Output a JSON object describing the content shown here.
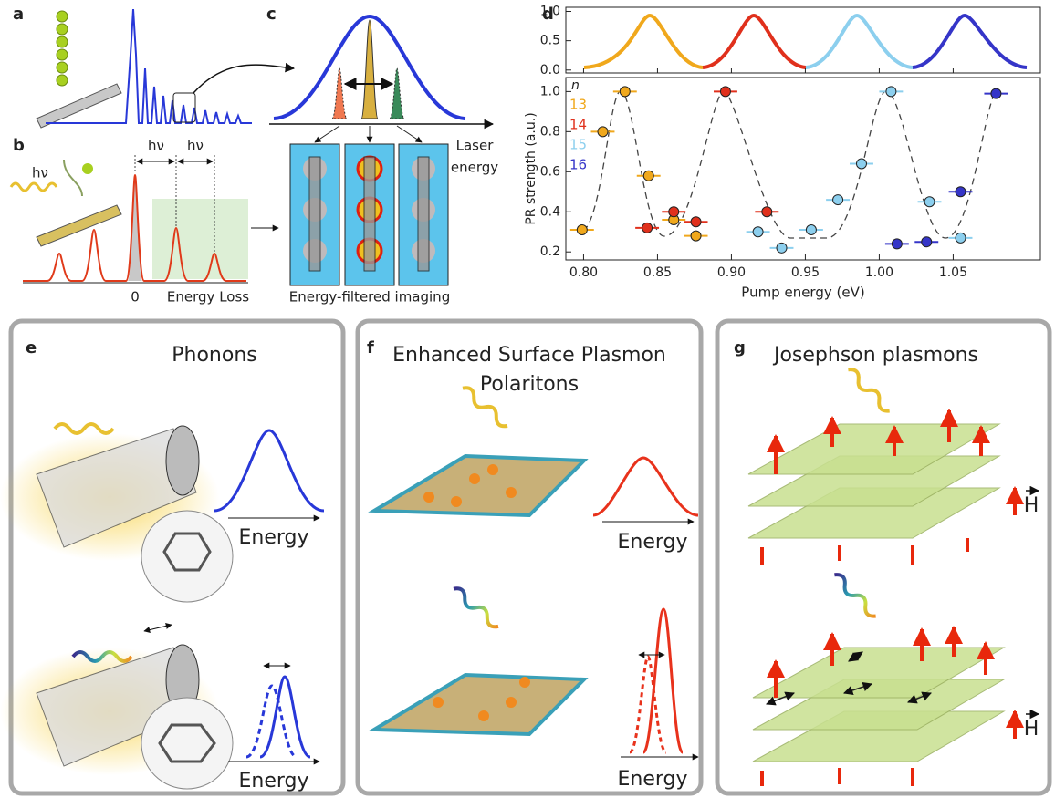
{
  "panel_labels": [
    "a",
    "b",
    "c",
    "d",
    "e",
    "f",
    "g"
  ],
  "panel_b": {
    "hv_labels": [
      "hν",
      "hν",
      "hν"
    ],
    "zero": "0",
    "xlabel": "Energy Loss"
  },
  "panel_c": {
    "xlabel_lines": [
      "Laser",
      "energy"
    ],
    "caption": "Energy-filtered imaging"
  },
  "chart_data": {
    "type": "scatter",
    "ylabel": "PR strength (a.u.)",
    "xlabel": "Pump energy (eV)",
    "legend_title": "n",
    "xlim": [
      0.788,
      1.109
    ],
    "xticks": [
      {
        "value": 0.8,
        "label": "0.80"
      },
      0.85,
      {
        "value": 0.9,
        "label": "0.90"
      },
      0.95,
      {
        "value": 1,
        "label": "1.00"
      },
      1.05
    ],
    "ylim": [
      0.16,
      1.07
    ],
    "yticks": [
      0.2,
      0.4,
      0.6,
      0.8,
      {
        "value": 1,
        "label": "1.0"
      }
    ],
    "top_ylim": [
      -0.05,
      1.07
    ],
    "top_yticks": [
      {
        "value": 0,
        "label": "0.0"
      },
      0.5,
      {
        "value": 1,
        "label": "1.0"
      }
    ],
    "series": [
      {
        "name": "13",
        "color": "#f0a81c",
        "xerr": 0.008,
        "x": [
          0.799,
          0.813,
          0.828,
          0.844,
          0.861,
          0.876
        ],
        "values": [
          0.31,
          0.8,
          1.0,
          0.58,
          0.36,
          0.28
        ]
      },
      {
        "name": "14",
        "color": "#e0301c",
        "xerr": 0.008,
        "x": [
          0.843,
          0.861,
          0.876,
          0.896,
          0.924
        ],
        "values": [
          0.32,
          0.4,
          0.35,
          1.0,
          0.4
        ]
      },
      {
        "name": "15",
        "color": "#8ccfee",
        "xerr": 0.008,
        "x": [
          0.918,
          0.934,
          0.954,
          0.972,
          0.988,
          1.008,
          1.034,
          1.055
        ],
        "values": [
          0.3,
          0.22,
          0.31,
          0.46,
          0.64,
          1.0,
          0.45,
          0.27
        ]
      },
      {
        "name": "16",
        "color": "#3535c8",
        "xerr": 0.008,
        "x": [
          1.012,
          1.032,
          1.055,
          1.079
        ],
        "values": [
          0.24,
          0.25,
          0.5,
          0.99
        ]
      }
    ]
  },
  "panel_e": {
    "title": "Phonons",
    "energy_labels": [
      "Energy",
      "Energy"
    ]
  },
  "panel_f": {
    "title_lines": [
      "Enhanced Surface Plasmon",
      "Polaritons"
    ],
    "energy_labels": [
      "Energy",
      "Energy"
    ]
  },
  "panel_g": {
    "title": "Josephson plasmons",
    "field_labels": [
      "H",
      "H"
    ]
  }
}
